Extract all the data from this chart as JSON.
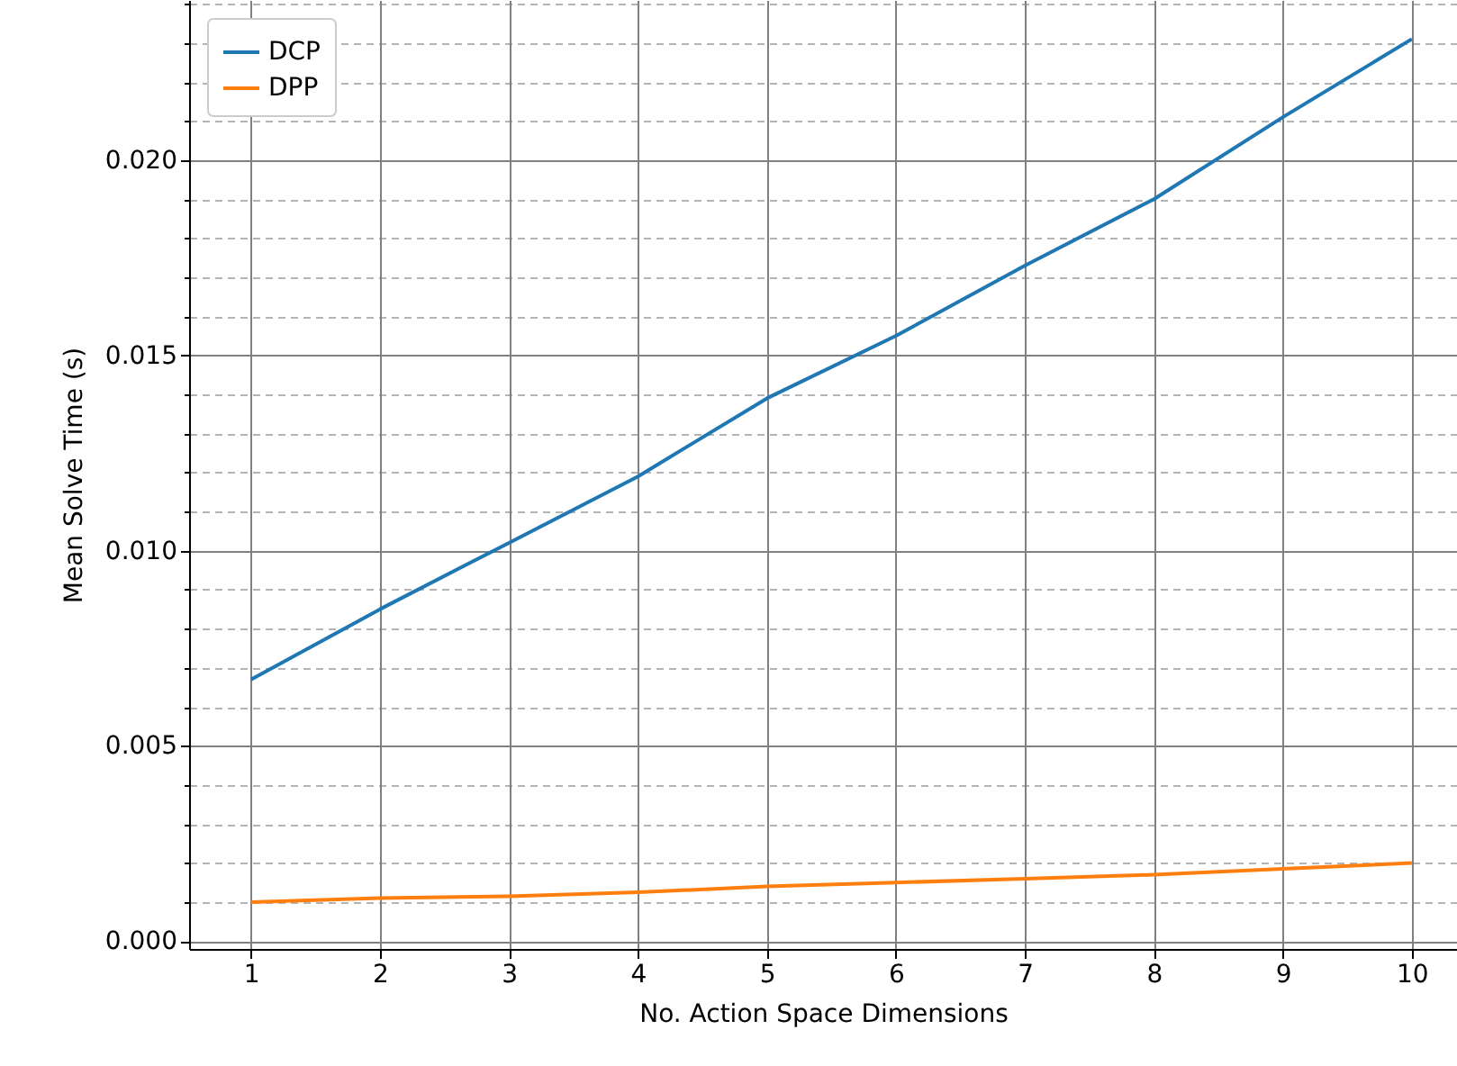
{
  "chart_data": {
    "type": "line",
    "xlabel": "No. Action Space Dimensions",
    "ylabel": "Mean Solve Time (s)",
    "x": [
      1,
      2,
      3,
      4,
      5,
      6,
      7,
      8,
      9,
      10
    ],
    "series": [
      {
        "name": "DCP",
        "color": "#1f77b4",
        "values": [
          0.0067,
          0.0085,
          0.0102,
          0.0119,
          0.0139,
          0.0155,
          0.0173,
          0.019,
          0.0211,
          0.0231
        ]
      },
      {
        "name": "DPP",
        "color": "#ff7f0e",
        "values": [
          0.001,
          0.0011,
          0.00115,
          0.00125,
          0.0014,
          0.0015,
          0.0016,
          0.0017,
          0.00185,
          0.002
        ]
      }
    ],
    "xlim": [
      0.52,
      10.35
    ],
    "ylim": [
      -0.0002,
      0.0241
    ],
    "xticks": [
      1,
      2,
      3,
      4,
      5,
      6,
      7,
      8,
      9,
      10
    ],
    "yticks": [
      {
        "value": 0,
        "label": "0.000"
      },
      {
        "value": 0.001,
        "label": null
      },
      {
        "value": 0.002,
        "label": null
      },
      {
        "value": 0.003,
        "label": null
      },
      {
        "value": 0.004,
        "label": null
      },
      {
        "value": 0.005,
        "label": "0.005"
      },
      {
        "value": 0.006,
        "label": null
      },
      {
        "value": 0.007,
        "label": null
      },
      {
        "value": 0.008,
        "label": null
      },
      {
        "value": 0.009,
        "label": null
      },
      {
        "value": 0.01,
        "label": "0.010"
      },
      {
        "value": 0.011,
        "label": null
      },
      {
        "value": 0.012,
        "label": null
      },
      {
        "value": 0.013,
        "label": null
      },
      {
        "value": 0.014,
        "label": null
      },
      {
        "value": 0.015,
        "label": "0.015"
      },
      {
        "value": 0.016,
        "label": null
      },
      {
        "value": 0.017,
        "label": null
      },
      {
        "value": 0.018,
        "label": null
      },
      {
        "value": 0.019,
        "label": null
      },
      {
        "value": 0.02,
        "label": "0.020"
      },
      {
        "value": 0.021,
        "label": null
      },
      {
        "value": 0.022,
        "label": null
      },
      {
        "value": 0.023,
        "label": null
      },
      {
        "value": 0.024,
        "label": null
      }
    ],
    "grid": true,
    "legend": "top left",
    "marker": "none",
    "line_style": "solid"
  }
}
